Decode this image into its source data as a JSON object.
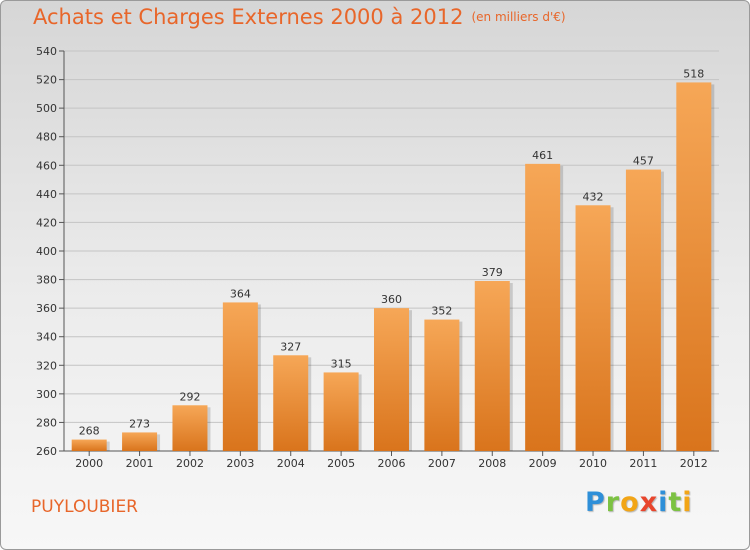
{
  "chart_data": {
    "type": "bar",
    "title": "Achats et Charges Externes 2000 à 2012",
    "subtitle": "(en milliers d'€)",
    "categories": [
      "2000",
      "2001",
      "2002",
      "2003",
      "2004",
      "2005",
      "2006",
      "2007",
      "2008",
      "2009",
      "2010",
      "2011",
      "2012"
    ],
    "values": [
      268,
      273,
      292,
      364,
      327,
      315,
      360,
      352,
      379,
      461,
      432,
      457,
      518
    ],
    "ylim": [
      260,
      540
    ],
    "yticks": [
      260,
      280,
      300,
      320,
      340,
      360,
      380,
      400,
      420,
      440,
      460,
      480,
      500,
      520,
      540
    ],
    "grid": true,
    "bar_color": "#f08a30"
  },
  "footer": {
    "place": "PUYLOUBIER",
    "logo_letters": [
      "P",
      "r",
      "o",
      "x",
      "i",
      "t",
      "i"
    ],
    "logo_colors": [
      "#2e8fd8",
      "#7cc242",
      "#f2a516",
      "#e8452c",
      "#2e8fd8",
      "#7cc242",
      "#f2a516"
    ]
  }
}
